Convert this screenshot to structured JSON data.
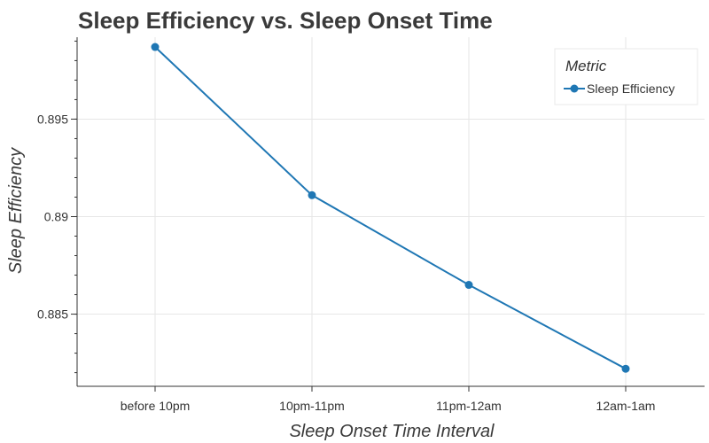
{
  "chart_data": {
    "type": "line",
    "title": "Sleep Efficiency vs. Sleep Onset Time",
    "xlabel": "Sleep Onset Time Interval",
    "ylabel": "Sleep Efficiency",
    "categories": [
      "before 10pm",
      "10pm-11pm",
      "11pm-12am",
      "12am-1am"
    ],
    "series": [
      {
        "name": "Sleep Efficiency",
        "values": [
          0.8987,
          0.8911,
          0.8865,
          0.8822
        ],
        "color": "#1f77b4"
      }
    ],
    "ylim": [
      0.8813,
      0.8992
    ],
    "yticks": [
      0.885,
      0.89,
      0.895
    ],
    "ytick_labels": [
      "0.885",
      "0.89",
      "0.895"
    ],
    "legend": {
      "title": "Metric",
      "placement": "top-right"
    },
    "grid": true
  }
}
